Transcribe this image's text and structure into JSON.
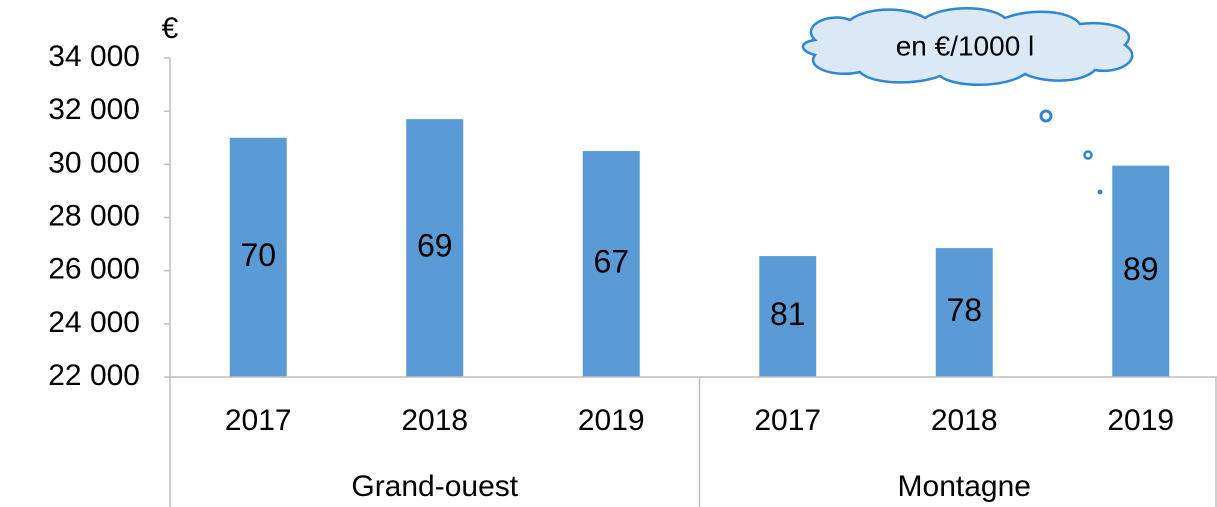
{
  "chart_data": {
    "type": "bar",
    "y_label": "€",
    "annotation": "en €/1000 l",
    "groups": [
      {
        "name": "Grand-ouest",
        "categories": [
          "2017",
          "2018",
          "2019"
        ],
        "values": [
          31000,
          31700,
          30500
        ],
        "bar_texts": [
          70,
          69,
          67
        ]
      },
      {
        "name": "Montagne",
        "categories": [
          "2017",
          "2018",
          "2019"
        ],
        "values": [
          26550,
          26850,
          29950
        ],
        "bar_texts": [
          81,
          78,
          89
        ]
      }
    ],
    "color": "#5b9bd5",
    "ylim": [
      22000,
      34000
    ],
    "yticks": [
      {
        "value": 22000,
        "label": "22 000"
      },
      {
        "value": 24000,
        "label": "24 000"
      },
      {
        "value": 26000,
        "label": "26 000"
      },
      {
        "value": 28000,
        "label": "28 000"
      },
      {
        "value": 30000,
        "label": "30 000"
      },
      {
        "value": 32000,
        "label": "32 000"
      },
      {
        "value": 34000,
        "label": "34 000"
      }
    ],
    "grid": false
  }
}
